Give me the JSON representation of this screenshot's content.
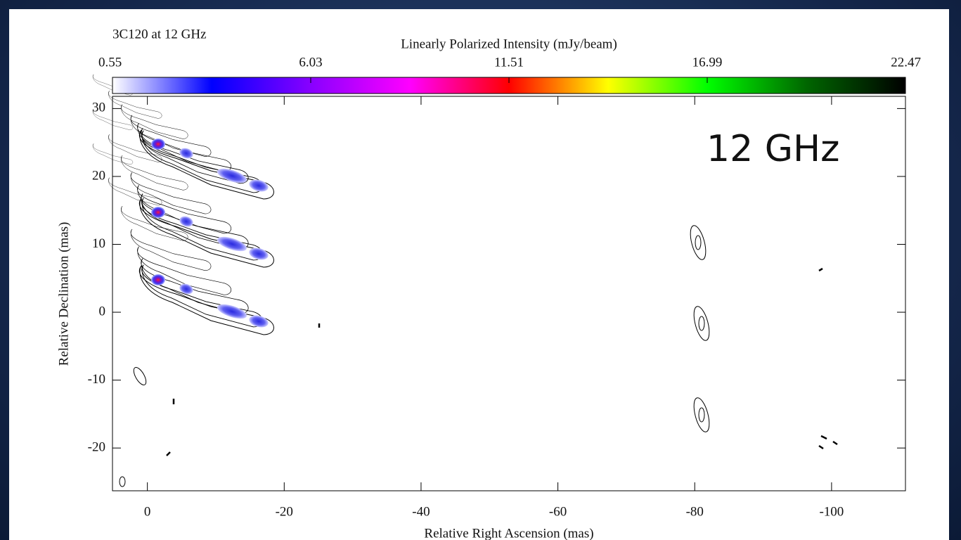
{
  "chart_data": {
    "type": "contour-map",
    "title": "3C120 at 12 GHz",
    "annotation": "12 GHz",
    "xlabel": "Relative Right Ascension (mas)",
    "ylabel": "Relative Declination (mas)",
    "xlim": [
      5.1,
      -110.8
    ],
    "xticks": [
      0,
      -20,
      -40,
      -60,
      -80,
      -100
    ],
    "ylim": [
      -26.3,
      31.8
    ],
    "yticks": [
      30,
      20,
      10,
      0,
      -10,
      -20
    ],
    "colorbar": {
      "label": "Linearly Polarized Intensity (mJy/beam)",
      "lim": [
        0.55,
        22.47
      ],
      "ticks": [
        0.55,
        6.03,
        11.51,
        16.99,
        22.47
      ],
      "colors": [
        "#ffffff",
        "#0000ff",
        "#8800ff",
        "#ff00ff",
        "#ff0000",
        "#ffff00",
        "#00ff00",
        "#006600",
        "#000000"
      ]
    }
  }
}
